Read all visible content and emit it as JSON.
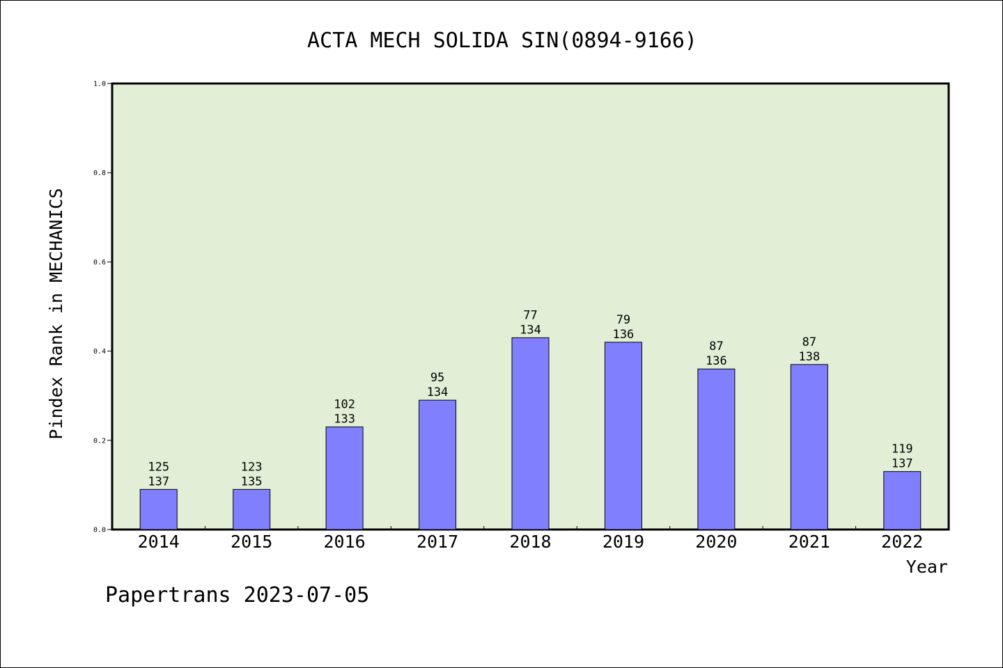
{
  "chart_data": {
    "type": "bar",
    "title": "ACTA MECH SOLIDA SIN(0894-9166)",
    "xlabel": "Year",
    "ylabel": "Pindex Rank in MECHANICS",
    "ylim": [
      0,
      1.0
    ],
    "yticks": [
      "0.0",
      "0.2",
      "0.4",
      "0.6",
      "0.8",
      "1.0"
    ],
    "categories": [
      "2014",
      "2015",
      "2016",
      "2017",
      "2018",
      "2019",
      "2020",
      "2021",
      "2022"
    ],
    "values": [
      0.09,
      0.09,
      0.23,
      0.29,
      0.43,
      0.42,
      0.36,
      0.37,
      0.13
    ],
    "rank_labels": [
      "125",
      "123",
      "102",
      "95",
      "77",
      "79",
      "87",
      "87",
      "119"
    ],
    "total_labels": [
      "137",
      "135",
      "133",
      "134",
      "134",
      "136",
      "136",
      "138",
      "137"
    ],
    "grid": false,
    "colors": {
      "bar": "#8080FF",
      "plot_bg": "#E2EFD6"
    },
    "footer": "Papertrans 2023-07-05"
  }
}
